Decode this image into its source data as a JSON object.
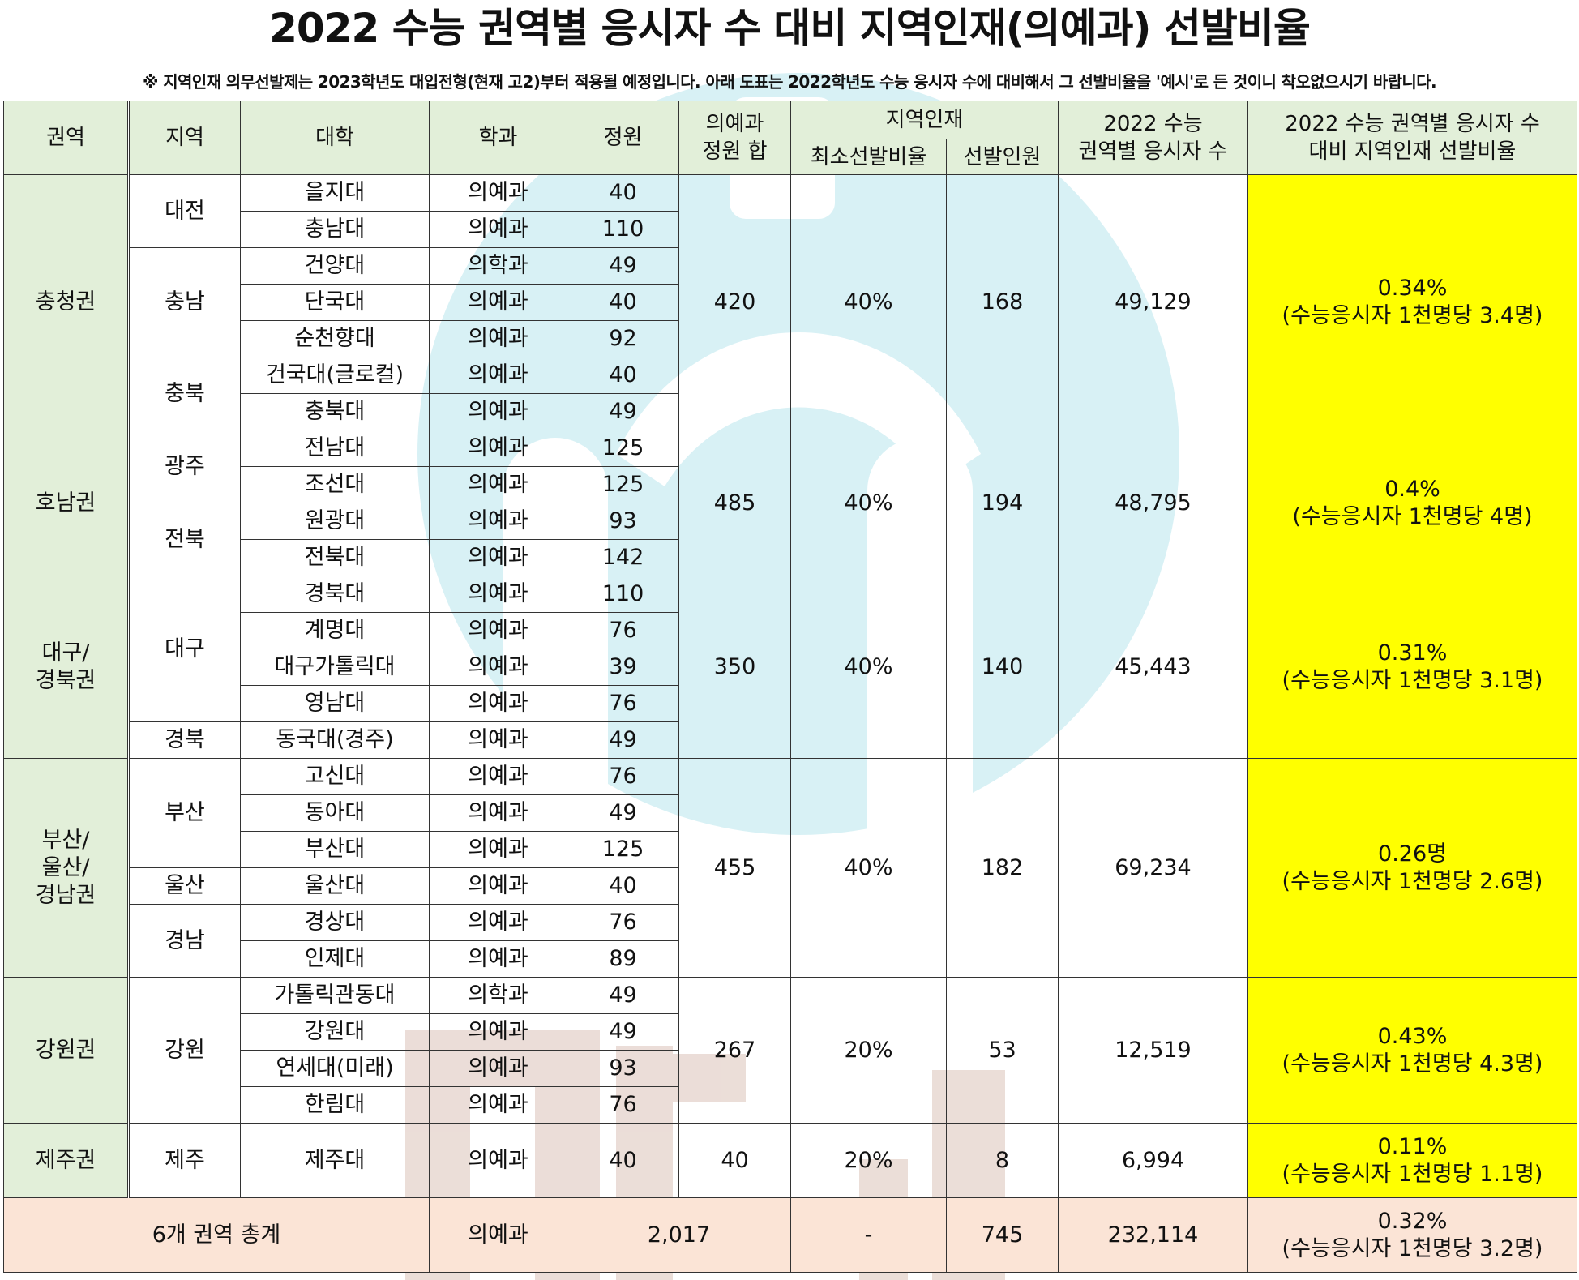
{
  "title": "2022 수능 권역별 응시자 수 대비 지역인재(의예과) 선발비율",
  "note": "※ 지역인재 의무선발제는 2023학년도 대입전형(현재 고2)부터 적용될 예정입니다. 아래 도표는 2022학년도 수능 응시자 수에 대비해서 그 선발비율을 '예시'로 든 것이니 착오없으시기 바랍니다.",
  "headers": {
    "region_group": "권역",
    "region": "지역",
    "university": "대학",
    "department": "학과",
    "quota": "정원",
    "quota_sum_l1": "의예과",
    "quota_sum_l2": "정원 합",
    "local_talent": "지역인재",
    "min_ratio": "최소선발비율",
    "selected": "선발인원",
    "applicants_l1": "2022 수능",
    "applicants_l2": "권역별 응시자 수",
    "rate_l1": "2022 수능 권역별 응시자 수",
    "rate_l2": "대비 지역인재 선발비율"
  },
  "groups": {
    "chungcheong": {
      "name": "충청권",
      "quota_sum": "420",
      "min_ratio": "40%",
      "selected": "168",
      "applicants": "49,129",
      "rate": "0.34%",
      "rate_note": "(수능응시자 1천명당 3.4명)"
    },
    "honam": {
      "name": "호남권",
      "quota_sum": "485",
      "min_ratio": "40%",
      "selected": "194",
      "applicants": "48,795",
      "rate": "0.4%",
      "rate_note": "(수능응시자 1천명당 4명)"
    },
    "daegu": {
      "name_l1": "대구/",
      "name_l2": "경북권",
      "quota_sum": "350",
      "min_ratio": "40%",
      "selected": "140",
      "applicants": "45,443",
      "rate": "0.31%",
      "rate_note": "(수능응시자 1천명당 3.1명)"
    },
    "busan": {
      "name_l1": "부산/",
      "name_l2": "울산/",
      "name_l3": "경남권",
      "quota_sum": "455",
      "min_ratio": "40%",
      "selected": "182",
      "applicants": "69,234",
      "rate": "0.26명",
      "rate_note": "(수능응시자 1천명당 2.6명)"
    },
    "gangwon": {
      "name": "강원권",
      "quota_sum": "267",
      "min_ratio": "20%",
      "selected": "53",
      "applicants": "12,519",
      "rate": "0.43%",
      "rate_note": "(수능응시자 1천명당 4.3명)"
    },
    "jeju": {
      "name": "제주권",
      "quota_sum": "40",
      "min_ratio": "20%",
      "selected": "8",
      "applicants": "6,994",
      "rate": "0.11%",
      "rate_note": "(수능응시자 1천명당 1.1명)"
    }
  },
  "regions": {
    "daejeon": "대전",
    "chungnam": "충남",
    "chungbuk": "충북",
    "gwangju": "광주",
    "jeonbuk": "전북",
    "daegu": "대구",
    "gyeongbuk": "경북",
    "busan": "부산",
    "ulsan": "울산",
    "gyeongnam": "경남",
    "gangwon": "강원",
    "jeju": "제주"
  },
  "rows": [
    {
      "univ": "을지대",
      "dept": "의예과",
      "quota": "40"
    },
    {
      "univ": "충남대",
      "dept": "의예과",
      "quota": "110"
    },
    {
      "univ": "건양대",
      "dept": "의학과",
      "quota": "49"
    },
    {
      "univ": "단국대",
      "dept": "의예과",
      "quota": "40"
    },
    {
      "univ": "순천향대",
      "dept": "의예과",
      "quota": "92"
    },
    {
      "univ": "건국대(글로컬)",
      "dept": "의예과",
      "quota": "40"
    },
    {
      "univ": "충북대",
      "dept": "의예과",
      "quota": "49"
    },
    {
      "univ": "전남대",
      "dept": "의예과",
      "quota": "125"
    },
    {
      "univ": "조선대",
      "dept": "의예과",
      "quota": "125"
    },
    {
      "univ": "원광대",
      "dept": "의예과",
      "quota": "93"
    },
    {
      "univ": "전북대",
      "dept": "의예과",
      "quota": "142"
    },
    {
      "univ": "경북대",
      "dept": "의예과",
      "quota": "110"
    },
    {
      "univ": "계명대",
      "dept": "의예과",
      "quota": "76"
    },
    {
      "univ": "대구가톨릭대",
      "dept": "의예과",
      "quota": "39"
    },
    {
      "univ": "영남대",
      "dept": "의예과",
      "quota": "76"
    },
    {
      "univ": "동국대(경주)",
      "dept": "의예과",
      "quota": "49"
    },
    {
      "univ": "고신대",
      "dept": "의예과",
      "quota": "76"
    },
    {
      "univ": "동아대",
      "dept": "의예과",
      "quota": "49"
    },
    {
      "univ": "부산대",
      "dept": "의예과",
      "quota": "125"
    },
    {
      "univ": "울산대",
      "dept": "의예과",
      "quota": "40"
    },
    {
      "univ": "경상대",
      "dept": "의예과",
      "quota": "76"
    },
    {
      "univ": "인제대",
      "dept": "의예과",
      "quota": "89"
    },
    {
      "univ": "가톨릭관동대",
      "dept": "의학과",
      "quota": "49"
    },
    {
      "univ": "강원대",
      "dept": "의예과",
      "quota": "49"
    },
    {
      "univ": "연세대(미래)",
      "dept": "의예과",
      "quota": "93"
    },
    {
      "univ": "한림대",
      "dept": "의예과",
      "quota": "76"
    },
    {
      "univ": "제주대",
      "dept": "의예과",
      "quota": "40"
    }
  ],
  "total": {
    "label": "6개 권역 총계",
    "dept": "의예과",
    "quota_sum": "2,017",
    "min_ratio": "-",
    "selected": "745",
    "applicants": "232,114",
    "rate": "0.32%",
    "rate_note": "(수능응시자 1천명당 3.2명)"
  },
  "watermark": {
    "text": "메디치",
    "colors": {
      "logo": "#d6f0f4",
      "text": "#ecdcd6"
    }
  }
}
